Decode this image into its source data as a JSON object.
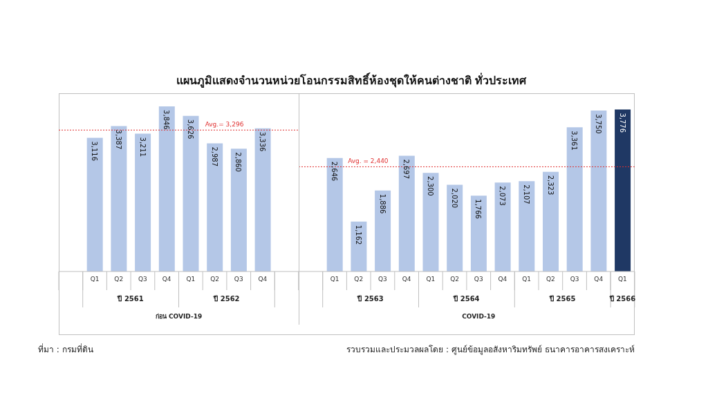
{
  "chart_data": [
    {
      "type": "bar",
      "title": "แผนภูมิแสดงจำนวนหน่วยโอนกรรมสิทธิ์ห้องชุดให้คนต่างชาติ ทั่วประเทศ",
      "categories": [
        "Q1",
        "Q2",
        "Q3",
        "Q4",
        "Q1",
        "Q2",
        "Q3",
        "Q4"
      ],
      "values": [
        3116,
        3387,
        3211,
        3846,
        3626,
        2987,
        2860,
        3336
      ],
      "colors": [
        "#b4c7e7",
        "#b4c7e7",
        "#b4c7e7",
        "#b4c7e7",
        "#b4c7e7",
        "#b4c7e7",
        "#b4c7e7",
        "#b4c7e7"
      ],
      "value_labels": [
        "3,116",
        "3,387",
        "3,211",
        "3,846",
        "3,626",
        "2,987",
        "2,860",
        "3,336"
      ],
      "xlabel": "ก่อน COVID-19",
      "ref_lines": [
        {
          "axis": "y",
          "value": 3296,
          "label": "Avg.= 3,296",
          "color": "#e03030",
          "line_style": "dotted"
        }
      ],
      "annotations": [
        "ปี 2561",
        "ปี 2562",
        "ที่มา : กรมที่ดิน"
      ]
    },
    {
      "type": "bar",
      "categories": [
        "Q1",
        "Q2",
        "Q3",
        "Q4",
        "Q1",
        "Q2",
        "Q3",
        "Q4",
        "Q1",
        "Q2",
        "Q3",
        "Q4",
        "Q1"
      ],
      "values": [
        2646,
        1162,
        1886,
        2697,
        2300,
        2020,
        1766,
        2073,
        2107,
        2323,
        3361,
        3750,
        3776
      ],
      "colors": [
        "#b4c7e7",
        "#b4c7e7",
        "#b4c7e7",
        "#b4c7e7",
        "#b4c7e7",
        "#b4c7e7",
        "#b4c7e7",
        "#b4c7e7",
        "#b4c7e7",
        "#b4c7e7",
        "#b4c7e7",
        "#b4c7e7",
        "#1f3864"
      ],
      "value_labels": [
        "2,646",
        "1,162",
        "1,886",
        "2,697",
        "2,300",
        "2,020",
        "1,766",
        "2,073",
        "2,107",
        "2,323",
        "3,361",
        "3,750",
        "3,776"
      ],
      "xlabel": "COVID-19",
      "ref_lines": [
        {
          "axis": "y",
          "value": 2440,
          "label": "Avg. = 2,440",
          "color": "#e03030",
          "line_style": "dotted"
        }
      ],
      "annotations": [
        "ปี 2563",
        "ปี 2564",
        "ปี 2565",
        "ปี 2566",
        "รวบรวมและประมวลผลโดย : ศูนย์ข้อมูลอสังหาริมทรัพย์ ธนาคารอาคารสงเคราะห์"
      ]
    }
  ]
}
